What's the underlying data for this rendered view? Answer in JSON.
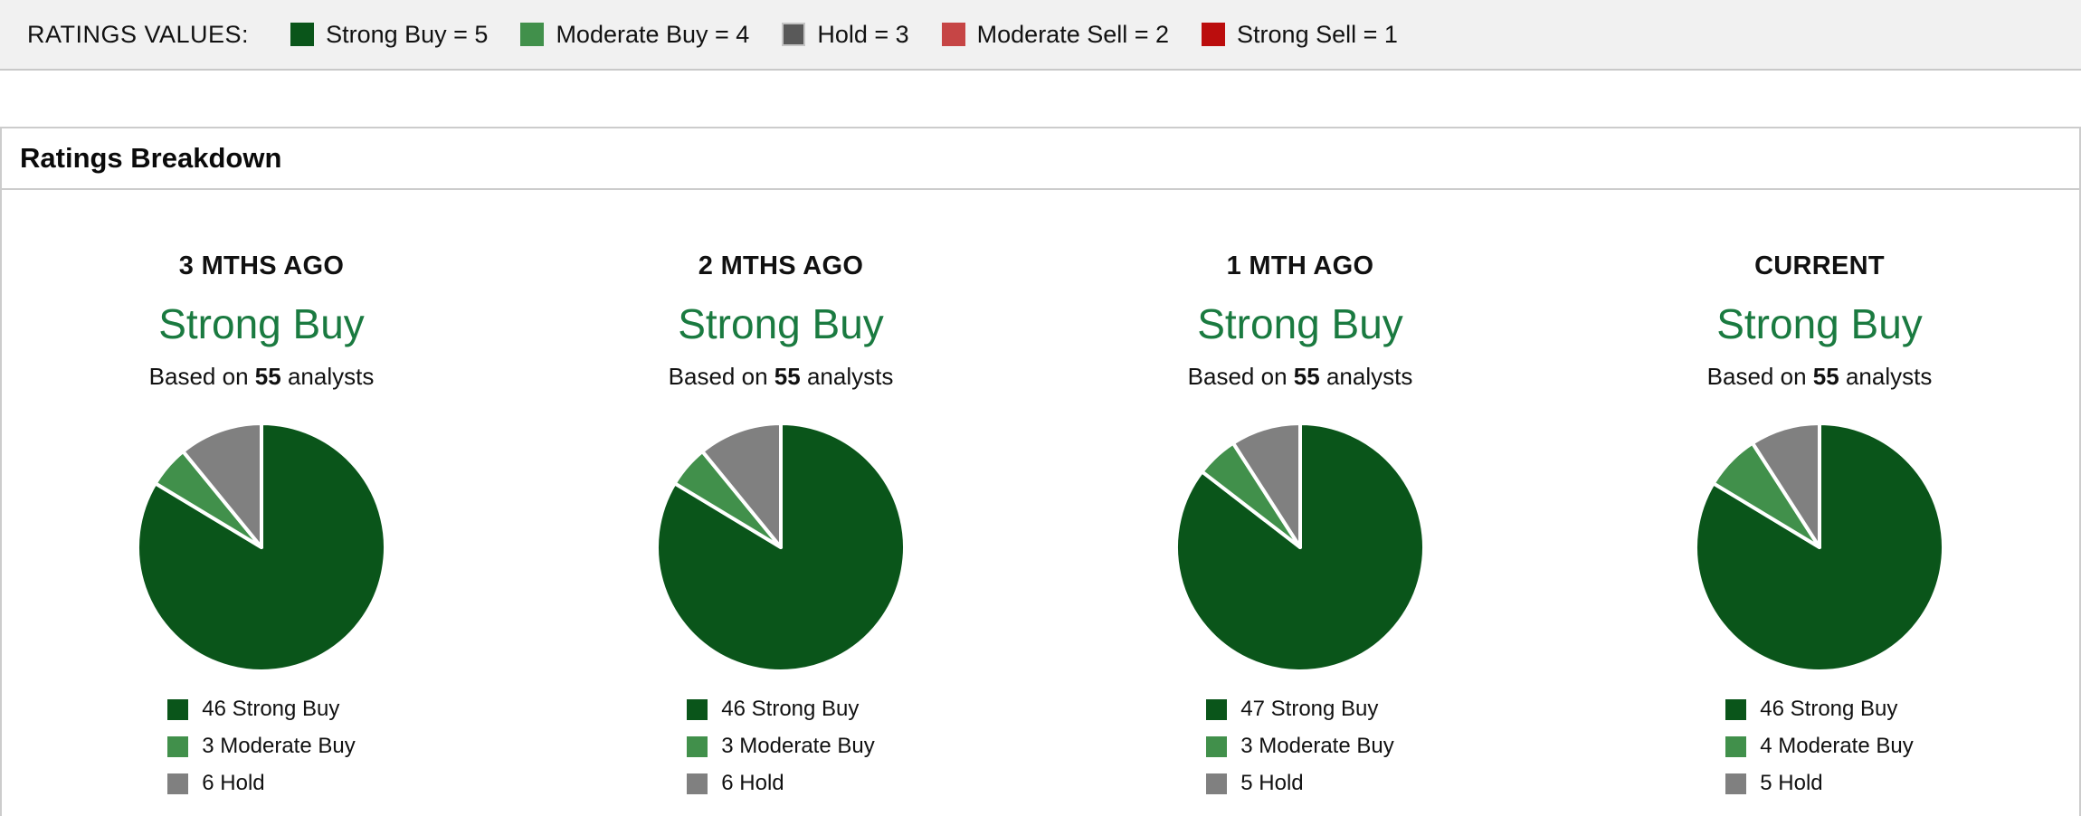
{
  "colors": {
    "strong_buy": "#0a551a",
    "moderate_buy": "#41904b",
    "hold": "#808080",
    "moderate_sell": "#c64545",
    "strong_sell": "#bb0d0d",
    "rating_heading": "#1a7a40",
    "pie_separator": "#ffffff"
  },
  "ratings_values_bar": {
    "label": "RATINGS VALUES:",
    "items": [
      {
        "label": "Strong Buy = 5",
        "color": "#0a551a",
        "border": null
      },
      {
        "label": "Moderate Buy = 4",
        "color": "#41904b",
        "border": null
      },
      {
        "label": "Hold = 3",
        "color": "#595959",
        "border": "#c4c4c4"
      },
      {
        "label": "Moderate Sell = 2",
        "color": "#c64545",
        "border": null
      },
      {
        "label": "Strong Sell = 1",
        "color": "#bb0d0d",
        "border": null
      }
    ]
  },
  "panel": {
    "title": "Ratings Breakdown"
  },
  "chart_data": [
    {
      "type": "pie",
      "title": "3 MTHS AGO",
      "consensus": "Strong Buy",
      "based_on_prefix": "Based on",
      "analyst_count": "55",
      "based_on_suffix": "analysts",
      "slices": [
        {
          "label": "Strong Buy",
          "value": 46,
          "color": "#0a551a",
          "legend": "46 Strong Buy"
        },
        {
          "label": "Moderate Buy",
          "value": 3,
          "color": "#41904b",
          "legend": "3 Moderate Buy"
        },
        {
          "label": "Hold",
          "value": 6,
          "color": "#808080",
          "legend": "6 Hold"
        }
      ]
    },
    {
      "type": "pie",
      "title": "2 MTHS AGO",
      "consensus": "Strong Buy",
      "based_on_prefix": "Based on",
      "analyst_count": "55",
      "based_on_suffix": "analysts",
      "slices": [
        {
          "label": "Strong Buy",
          "value": 46,
          "color": "#0a551a",
          "legend": "46 Strong Buy"
        },
        {
          "label": "Moderate Buy",
          "value": 3,
          "color": "#41904b",
          "legend": "3 Moderate Buy"
        },
        {
          "label": "Hold",
          "value": 6,
          "color": "#808080",
          "legend": "6 Hold"
        }
      ]
    },
    {
      "type": "pie",
      "title": "1 MTH AGO",
      "consensus": "Strong Buy",
      "based_on_prefix": "Based on",
      "analyst_count": "55",
      "based_on_suffix": "analysts",
      "slices": [
        {
          "label": "Strong Buy",
          "value": 47,
          "color": "#0a551a",
          "legend": "47 Strong Buy"
        },
        {
          "label": "Moderate Buy",
          "value": 3,
          "color": "#41904b",
          "legend": "3 Moderate Buy"
        },
        {
          "label": "Hold",
          "value": 5,
          "color": "#808080",
          "legend": "5 Hold"
        }
      ]
    },
    {
      "type": "pie",
      "title": "CURRENT",
      "consensus": "Strong Buy",
      "based_on_prefix": "Based on",
      "analyst_count": "55",
      "based_on_suffix": "analysts",
      "slices": [
        {
          "label": "Strong Buy",
          "value": 46,
          "color": "#0a551a",
          "legend": "46 Strong Buy"
        },
        {
          "label": "Moderate Buy",
          "value": 4,
          "color": "#41904b",
          "legend": "4 Moderate Buy"
        },
        {
          "label": "Hold",
          "value": 5,
          "color": "#808080",
          "legend": "5 Hold"
        }
      ]
    }
  ]
}
